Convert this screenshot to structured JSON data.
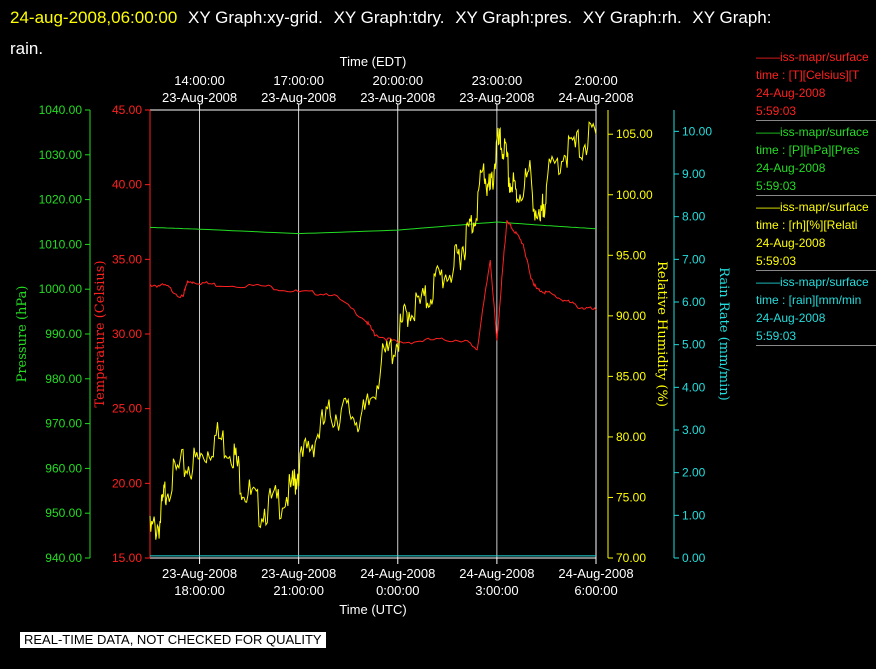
{
  "header": {
    "timestamp": "24-aug-2008,06:00:00",
    "graphs": [
      "XY Graph:xy-grid.",
      "XY Graph:tdry.",
      "XY Graph:pres.",
      "XY Graph:rh.",
      "XY Graph:",
      "rain."
    ]
  },
  "legend": [
    {
      "line": "——iss-mapr/surface",
      "field": "time : [T][Celsius][T",
      "date": "24-Aug-2008",
      "time": "5:59:03",
      "color": "#ff2020"
    },
    {
      "line": "——iss-mapr/surface",
      "field": "time : [P][hPa][Pres",
      "date": "24-Aug-2008",
      "time": "5:59:03",
      "color": "#22dd22"
    },
    {
      "line": "——iss-mapr/surface",
      "field": "time : [rh][%][Relati",
      "date": "24-Aug-2008",
      "time": "5:59:03",
      "color": "#ffff00"
    },
    {
      "line": "——iss-mapr/surface",
      "field": "time : [rain][mm/min",
      "date": "24-Aug-2008",
      "time": "5:59:03",
      "color": "#22dddd"
    }
  ],
  "notice": "REAL-TIME DATA, NOT CHECKED FOR QUALITY",
  "chart_data": {
    "type": "line",
    "x_top_label": "Time (EDT)",
    "x_bottom_label": "Time (UTC)",
    "x_range_utc_hours": [
      16.5,
      30
    ],
    "x_ticks": [
      {
        "utc": 18,
        "bottom": [
          "23-Aug-2008",
          "18:00:00"
        ],
        "top": [
          "14:00:00",
          "23-Aug-2008"
        ]
      },
      {
        "utc": 21,
        "bottom": [
          "23-Aug-2008",
          "21:00:00"
        ],
        "top": [
          "17:00:00",
          "23-Aug-2008"
        ]
      },
      {
        "utc": 24,
        "bottom": [
          "24-Aug-2008",
          "0:00:00"
        ],
        "top": [
          "20:00:00",
          "23-Aug-2008"
        ]
      },
      {
        "utc": 27,
        "bottom": [
          "24-Aug-2008",
          "3:00:00"
        ],
        "top": [
          "23:00:00",
          "23-Aug-2008"
        ]
      },
      {
        "utc": 30,
        "bottom": [
          "24-Aug-2008",
          "6:00:00"
        ],
        "top": [
          "2:00:00",
          "24-Aug-2008"
        ]
      }
    ],
    "axes": [
      {
        "id": "pres",
        "label": "Pressure (hPa)",
        "color": "#22dd22",
        "range": [
          940,
          1040
        ],
        "ticks": [
          "940.00",
          "950.00",
          "960.00",
          "970.00",
          "980.00",
          "990.00",
          "1000.00",
          "1010.00",
          "1020.00",
          "1030.00",
          "1040.00"
        ]
      },
      {
        "id": "tdry",
        "label": "Temperature (Celsius)",
        "color": "#ff2020",
        "range": [
          15,
          45
        ],
        "ticks": [
          "15.00",
          "20.00",
          "25.00",
          "30.00",
          "35.00",
          "40.00",
          "45.00"
        ]
      },
      {
        "id": "rh",
        "label": "Relative Humidity (%)",
        "color": "#ffff00",
        "range": [
          70,
          107
        ],
        "ticks": [
          "70.00",
          "75.00",
          "80.00",
          "85.00",
          "90.00",
          "95.00",
          "100.00",
          "105.00"
        ]
      },
      {
        "id": "rain",
        "label": "Rain Rate (mm/min)",
        "color": "#22dddd",
        "range": [
          0,
          10.5
        ],
        "ticks": [
          "0.00",
          "1.00",
          "2.00",
          "3.00",
          "4.00",
          "5.00",
          "6.00",
          "7.00",
          "8.00",
          "9.00",
          "10.00"
        ]
      }
    ],
    "series": [
      {
        "axis": "pres",
        "color": "#22dd22",
        "x": [
          16.5,
          18,
          21,
          24,
          27,
          28.5,
          30
        ],
        "y": [
          1013.8,
          1013.4,
          1012.4,
          1013.2,
          1015,
          1014.2,
          1013.5
        ]
      },
      {
        "axis": "tdry",
        "color": "#ff2020",
        "x": [
          16.5,
          17,
          17.5,
          17.6,
          17.8,
          18.5,
          20,
          21,
          22,
          23,
          23.3,
          24,
          25,
          26,
          26.4,
          26.8,
          27,
          27.2,
          27.3,
          27.5,
          27.8,
          28,
          28.2,
          28.5,
          29,
          29.5,
          30
        ],
        "y": [
          33.3,
          33.2,
          32.4,
          33.4,
          33.5,
          33.3,
          33.2,
          32.8,
          32.7,
          31,
          30,
          29.4,
          29.6,
          29.6,
          29,
          35,
          29.5,
          35,
          37.5,
          37,
          36,
          34,
          33,
          32.8,
          32.3,
          31.8,
          31.6
        ]
      },
      {
        "axis": "rh",
        "color": "#ffff00",
        "x": [
          16.5,
          16.8,
          17,
          17.5,
          18,
          18.5,
          19,
          19.3,
          19.8,
          20.3,
          20.8,
          21,
          21.5,
          22,
          22.5,
          23,
          23.5,
          24,
          24.3,
          24.8,
          25.2,
          25.7,
          26,
          26.3,
          26.6,
          26.8,
          27,
          27.2,
          27.4,
          27.6,
          28,
          28.3,
          28.5,
          29,
          29.5,
          30
        ],
        "y": [
          72,
          73,
          76,
          77.5,
          78,
          80,
          79,
          76,
          74,
          74.5,
          75.5,
          77.5,
          80,
          82,
          82,
          81.5,
          86,
          88,
          90.5,
          91,
          93,
          94,
          96,
          98,
          102,
          100,
          104,
          104,
          101,
          100,
          101.5,
          97,
          101,
          103.5,
          104,
          105
        ]
      },
      {
        "axis": "rain",
        "color": "#22dddd",
        "x": [
          16.5,
          30
        ],
        "y": [
          0.05,
          0.05
        ]
      }
    ]
  }
}
